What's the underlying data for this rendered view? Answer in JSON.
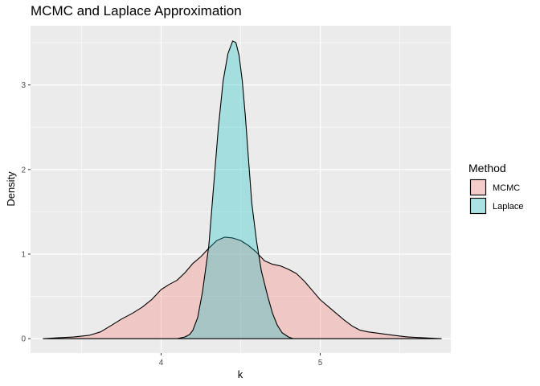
{
  "chart_data": {
    "type": "area",
    "title": "MCMC and Laplace Approximation",
    "xlabel": "k",
    "ylabel": "Density",
    "xlim": [
      3.18,
      5.82
    ],
    "ylim": [
      -0.17,
      3.7
    ],
    "x_ticks": [
      4,
      5
    ],
    "y_ticks": [
      0,
      1,
      2,
      3
    ],
    "grid": true,
    "legend": {
      "title": "Method",
      "placement": "right"
    },
    "series": [
      {
        "name": "MCMC",
        "color": "#f8766d",
        "x": [
          3.26,
          3.35,
          3.45,
          3.55,
          3.62,
          3.69,
          3.75,
          3.82,
          3.88,
          3.94,
          4.0,
          4.05,
          4.1,
          4.15,
          4.2,
          4.25,
          4.3,
          4.35,
          4.4,
          4.45,
          4.5,
          4.55,
          4.6,
          4.65,
          4.7,
          4.75,
          4.8,
          4.85,
          4.9,
          4.95,
          5.0,
          5.05,
          5.1,
          5.15,
          5.2,
          5.25,
          5.3,
          5.38,
          5.46,
          5.55,
          5.65,
          5.76
        ],
        "y": [
          0.0,
          0.01,
          0.02,
          0.04,
          0.08,
          0.16,
          0.23,
          0.3,
          0.37,
          0.46,
          0.58,
          0.64,
          0.69,
          0.78,
          0.89,
          0.97,
          1.07,
          1.16,
          1.2,
          1.19,
          1.16,
          1.1,
          1.02,
          0.92,
          0.88,
          0.86,
          0.82,
          0.77,
          0.68,
          0.57,
          0.46,
          0.38,
          0.3,
          0.22,
          0.15,
          0.1,
          0.08,
          0.06,
          0.04,
          0.02,
          0.01,
          0.0
        ]
      },
      {
        "name": "Laplace",
        "color": "#00bfc4",
        "x": [
          3.26,
          3.9,
          4.1,
          4.15,
          4.18,
          4.2,
          4.23,
          4.26,
          4.3,
          4.33,
          4.36,
          4.39,
          4.42,
          4.45,
          4.47,
          4.49,
          4.51,
          4.53,
          4.55,
          4.57,
          4.6,
          4.63,
          4.67,
          4.7,
          4.73,
          4.76,
          4.8,
          4.83,
          4.9,
          5.0,
          5.76
        ],
        "y": [
          0.0,
          0.0,
          0.0,
          0.02,
          0.05,
          0.1,
          0.25,
          0.55,
          1.1,
          1.8,
          2.5,
          3.05,
          3.37,
          3.52,
          3.5,
          3.35,
          3.05,
          2.62,
          2.1,
          1.6,
          1.15,
          0.8,
          0.5,
          0.3,
          0.16,
          0.07,
          0.02,
          0.0,
          0.0,
          0.0,
          0.0
        ]
      }
    ]
  }
}
